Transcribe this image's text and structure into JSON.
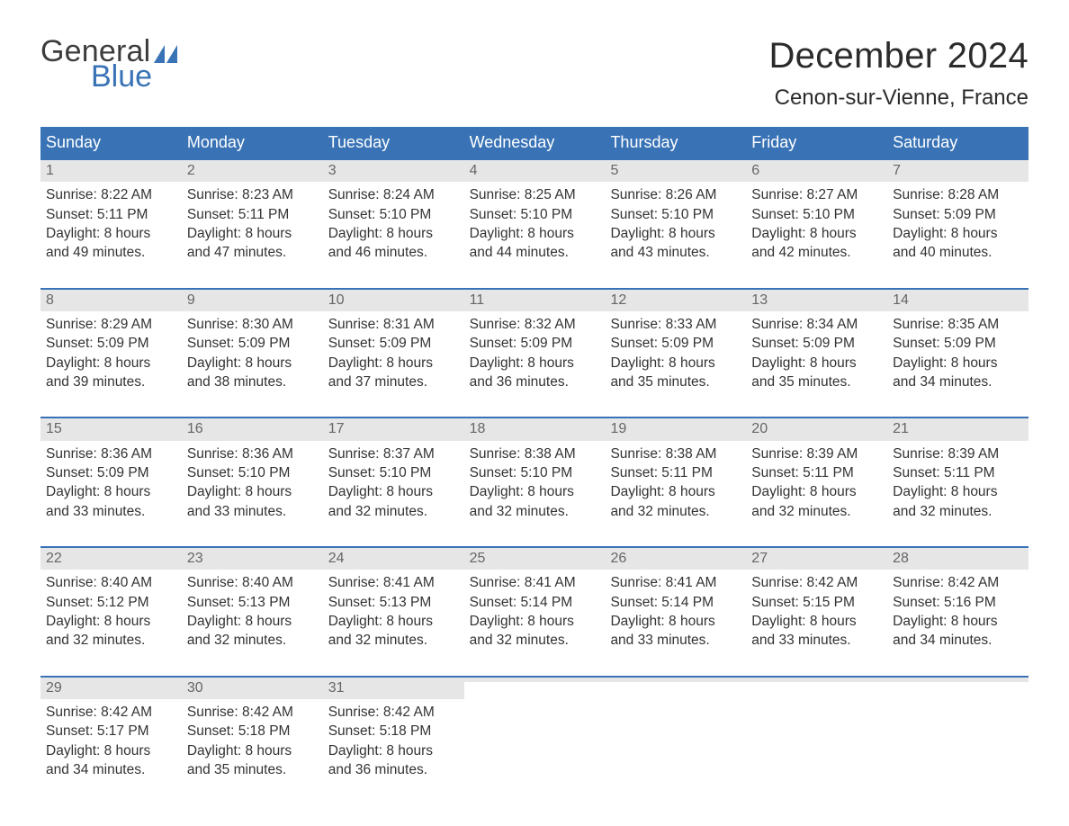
{
  "brand": {
    "part1": "General",
    "part2": "Blue",
    "flag_color": "#3973b6"
  },
  "title": "December 2024",
  "location": "Cenon-sur-Vienne, France",
  "colors": {
    "header_bg": "#3973b6",
    "header_text": "#ffffff",
    "week_rule": "#3973b6",
    "daybar_bg": "#e6e6e6",
    "daybar_text": "#666666",
    "body_text": "#333333",
    "page_bg": "#ffffff"
  },
  "typography": {
    "title_fontsize_pt": 30,
    "location_fontsize_pt": 18,
    "dayheader_fontsize_pt": 13.5,
    "cell_fontsize_pt": 11.5,
    "font_family": "Arial"
  },
  "day_headers": [
    "Sunday",
    "Monday",
    "Tuesday",
    "Wednesday",
    "Thursday",
    "Friday",
    "Saturday"
  ],
  "weeks": [
    [
      {
        "n": "1",
        "sunrise": "Sunrise: 8:22 AM",
        "sunset": "Sunset: 5:11 PM",
        "dl1": "Daylight: 8 hours",
        "dl2": "and 49 minutes."
      },
      {
        "n": "2",
        "sunrise": "Sunrise: 8:23 AM",
        "sunset": "Sunset: 5:11 PM",
        "dl1": "Daylight: 8 hours",
        "dl2": "and 47 minutes."
      },
      {
        "n": "3",
        "sunrise": "Sunrise: 8:24 AM",
        "sunset": "Sunset: 5:10 PM",
        "dl1": "Daylight: 8 hours",
        "dl2": "and 46 minutes."
      },
      {
        "n": "4",
        "sunrise": "Sunrise: 8:25 AM",
        "sunset": "Sunset: 5:10 PM",
        "dl1": "Daylight: 8 hours",
        "dl2": "and 44 minutes."
      },
      {
        "n": "5",
        "sunrise": "Sunrise: 8:26 AM",
        "sunset": "Sunset: 5:10 PM",
        "dl1": "Daylight: 8 hours",
        "dl2": "and 43 minutes."
      },
      {
        "n": "6",
        "sunrise": "Sunrise: 8:27 AM",
        "sunset": "Sunset: 5:10 PM",
        "dl1": "Daylight: 8 hours",
        "dl2": "and 42 minutes."
      },
      {
        "n": "7",
        "sunrise": "Sunrise: 8:28 AM",
        "sunset": "Sunset: 5:09 PM",
        "dl1": "Daylight: 8 hours",
        "dl2": "and 40 minutes."
      }
    ],
    [
      {
        "n": "8",
        "sunrise": "Sunrise: 8:29 AM",
        "sunset": "Sunset: 5:09 PM",
        "dl1": "Daylight: 8 hours",
        "dl2": "and 39 minutes."
      },
      {
        "n": "9",
        "sunrise": "Sunrise: 8:30 AM",
        "sunset": "Sunset: 5:09 PM",
        "dl1": "Daylight: 8 hours",
        "dl2": "and 38 minutes."
      },
      {
        "n": "10",
        "sunrise": "Sunrise: 8:31 AM",
        "sunset": "Sunset: 5:09 PM",
        "dl1": "Daylight: 8 hours",
        "dl2": "and 37 minutes."
      },
      {
        "n": "11",
        "sunrise": "Sunrise: 8:32 AM",
        "sunset": "Sunset: 5:09 PM",
        "dl1": "Daylight: 8 hours",
        "dl2": "and 36 minutes."
      },
      {
        "n": "12",
        "sunrise": "Sunrise: 8:33 AM",
        "sunset": "Sunset: 5:09 PM",
        "dl1": "Daylight: 8 hours",
        "dl2": "and 35 minutes."
      },
      {
        "n": "13",
        "sunrise": "Sunrise: 8:34 AM",
        "sunset": "Sunset: 5:09 PM",
        "dl1": "Daylight: 8 hours",
        "dl2": "and 35 minutes."
      },
      {
        "n": "14",
        "sunrise": "Sunrise: 8:35 AM",
        "sunset": "Sunset: 5:09 PM",
        "dl1": "Daylight: 8 hours",
        "dl2": "and 34 minutes."
      }
    ],
    [
      {
        "n": "15",
        "sunrise": "Sunrise: 8:36 AM",
        "sunset": "Sunset: 5:09 PM",
        "dl1": "Daylight: 8 hours",
        "dl2": "and 33 minutes."
      },
      {
        "n": "16",
        "sunrise": "Sunrise: 8:36 AM",
        "sunset": "Sunset: 5:10 PM",
        "dl1": "Daylight: 8 hours",
        "dl2": "and 33 minutes."
      },
      {
        "n": "17",
        "sunrise": "Sunrise: 8:37 AM",
        "sunset": "Sunset: 5:10 PM",
        "dl1": "Daylight: 8 hours",
        "dl2": "and 32 minutes."
      },
      {
        "n": "18",
        "sunrise": "Sunrise: 8:38 AM",
        "sunset": "Sunset: 5:10 PM",
        "dl1": "Daylight: 8 hours",
        "dl2": "and 32 minutes."
      },
      {
        "n": "19",
        "sunrise": "Sunrise: 8:38 AM",
        "sunset": "Sunset: 5:11 PM",
        "dl1": "Daylight: 8 hours",
        "dl2": "and 32 minutes."
      },
      {
        "n": "20",
        "sunrise": "Sunrise: 8:39 AM",
        "sunset": "Sunset: 5:11 PM",
        "dl1": "Daylight: 8 hours",
        "dl2": "and 32 minutes."
      },
      {
        "n": "21",
        "sunrise": "Sunrise: 8:39 AM",
        "sunset": "Sunset: 5:11 PM",
        "dl1": "Daylight: 8 hours",
        "dl2": "and 32 minutes."
      }
    ],
    [
      {
        "n": "22",
        "sunrise": "Sunrise: 8:40 AM",
        "sunset": "Sunset: 5:12 PM",
        "dl1": "Daylight: 8 hours",
        "dl2": "and 32 minutes."
      },
      {
        "n": "23",
        "sunrise": "Sunrise: 8:40 AM",
        "sunset": "Sunset: 5:13 PM",
        "dl1": "Daylight: 8 hours",
        "dl2": "and 32 minutes."
      },
      {
        "n": "24",
        "sunrise": "Sunrise: 8:41 AM",
        "sunset": "Sunset: 5:13 PM",
        "dl1": "Daylight: 8 hours",
        "dl2": "and 32 minutes."
      },
      {
        "n": "25",
        "sunrise": "Sunrise: 8:41 AM",
        "sunset": "Sunset: 5:14 PM",
        "dl1": "Daylight: 8 hours",
        "dl2": "and 32 minutes."
      },
      {
        "n": "26",
        "sunrise": "Sunrise: 8:41 AM",
        "sunset": "Sunset: 5:14 PM",
        "dl1": "Daylight: 8 hours",
        "dl2": "and 33 minutes."
      },
      {
        "n": "27",
        "sunrise": "Sunrise: 8:42 AM",
        "sunset": "Sunset: 5:15 PM",
        "dl1": "Daylight: 8 hours",
        "dl2": "and 33 minutes."
      },
      {
        "n": "28",
        "sunrise": "Sunrise: 8:42 AM",
        "sunset": "Sunset: 5:16 PM",
        "dl1": "Daylight: 8 hours",
        "dl2": "and 34 minutes."
      }
    ],
    [
      {
        "n": "29",
        "sunrise": "Sunrise: 8:42 AM",
        "sunset": "Sunset: 5:17 PM",
        "dl1": "Daylight: 8 hours",
        "dl2": "and 34 minutes."
      },
      {
        "n": "30",
        "sunrise": "Sunrise: 8:42 AM",
        "sunset": "Sunset: 5:18 PM",
        "dl1": "Daylight: 8 hours",
        "dl2": "and 35 minutes."
      },
      {
        "n": "31",
        "sunrise": "Sunrise: 8:42 AM",
        "sunset": "Sunset: 5:18 PM",
        "dl1": "Daylight: 8 hours",
        "dl2": "and 36 minutes."
      },
      {
        "empty": true
      },
      {
        "empty": true
      },
      {
        "empty": true
      },
      {
        "empty": true
      }
    ]
  ]
}
